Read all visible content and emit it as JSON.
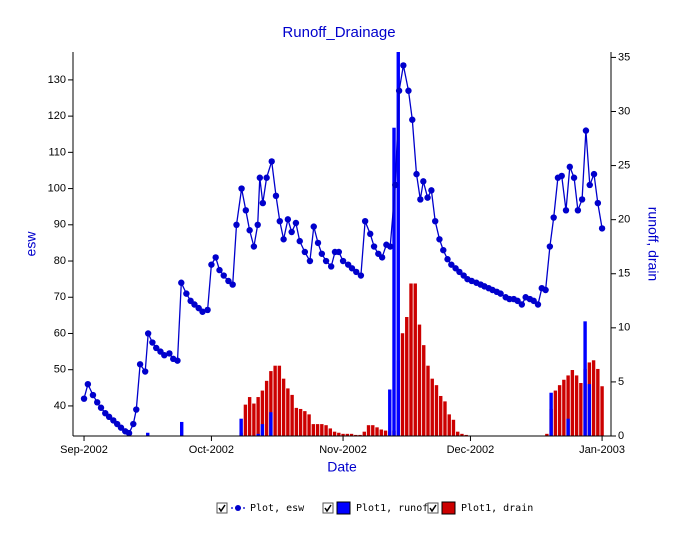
{
  "chart_data": {
    "type": "line",
    "title": "Runoff_Drainage",
    "x_label": "Date",
    "y_label": "esw",
    "y2_label": "runoff, drain",
    "xlim": [
      -2.6,
      124.1
    ],
    "xticks": [
      {
        "value": 0,
        "label": "Sep-2002"
      },
      {
        "value": 30,
        "label": "Oct-2002"
      },
      {
        "value": 61,
        "label": "Nov-2002"
      },
      {
        "value": 91,
        "label": "Dec-2002"
      },
      {
        "value": 122,
        "label": "Jan-2003"
      }
    ],
    "ylim": [
      31.7,
      137.7
    ],
    "yticks": [
      40,
      50,
      60,
      70,
      80,
      90,
      100,
      110,
      120,
      130
    ],
    "y2lim": [
      0,
      35.5
    ],
    "y2ticks": [
      0,
      5,
      10,
      15,
      20,
      25,
      30,
      35
    ],
    "series": [
      {
        "name": "Plot, esw",
        "type": "line",
        "color": "#0000cc",
        "x": [
          0,
          0.9,
          2.1,
          3.1,
          4,
          5,
          5.9,
          6.9,
          7.8,
          8.7,
          9.7,
          10.6,
          11.6,
          12.3,
          13.2,
          14.4,
          15.1,
          16.1,
          17,
          18,
          18.9,
          20.1,
          21,
          22,
          22.9,
          24.1,
          25.1,
          26,
          27,
          27.9,
          29.1,
          30,
          31,
          31.9,
          32.9,
          34,
          35,
          35.9,
          37.1,
          38.1,
          39,
          40,
          40.9,
          41.4,
          42.1,
          43,
          44.2,
          45.2,
          46.1,
          47,
          48,
          48.9,
          49.9,
          50.8,
          52,
          53.2,
          54.1,
          55.1,
          56,
          57,
          58.2,
          59.1,
          60,
          61,
          62.2,
          63.1,
          64.1,
          65.2,
          66.2,
          67.4,
          68.3,
          69.3,
          70.2,
          71.2,
          72.1,
          73.3,
          74.2,
          75.2,
          76.4,
          77.3,
          78.3,
          79.2,
          79.9,
          80.9,
          81.8,
          82.7,
          83.7,
          84.6,
          85.6,
          86.5,
          87.5,
          88.4,
          89.4,
          90.3,
          91.3,
          92.4,
          93.4,
          94.3,
          95.3,
          96.2,
          97.2,
          98.1,
          99.3,
          100.2,
          101.2,
          102.1,
          103.1,
          104,
          105,
          105.9,
          106.9,
          107.8,
          108.7,
          109.7,
          110.6,
          111.6,
          112.5,
          113.5,
          114.4,
          115.4,
          116.3,
          117.3,
          118.2,
          119.1,
          120.1,
          121,
          122
        ],
        "values": [
          42,
          46,
          43,
          41,
          39.5,
          38,
          37,
          36,
          35,
          34,
          33,
          32.5,
          35,
          39,
          51.5,
          49.5,
          60,
          57.5,
          56,
          55,
          54,
          54.5,
          53,
          52.5,
          74,
          71,
          69,
          68,
          67,
          66,
          66.5,
          79,
          81,
          77.5,
          76,
          74.5,
          73.5,
          90,
          100,
          94,
          88.5,
          84,
          90,
          103,
          96,
          103,
          107.5,
          98,
          91,
          86,
          91.5,
          88,
          90.5,
          85.5,
          82.5,
          80,
          89.5,
          85,
          82,
          80,
          78.5,
          82.5,
          82.5,
          80,
          79,
          78,
          77,
          76,
          91,
          87.5,
          84,
          82,
          81,
          84.5,
          84,
          101,
          127,
          134,
          127,
          119,
          104,
          97,
          102,
          97.5,
          99.5,
          91,
          86,
          83,
          80.5,
          79,
          78,
          77,
          76,
          75,
          74.5,
          74,
          73.5,
          73,
          72.5,
          72,
          71.5,
          71,
          70,
          69.5,
          69.5,
          69,
          68,
          70,
          69.5,
          69,
          68,
          72.5,
          72,
          84,
          92,
          103,
          103.5,
          94,
          106,
          103,
          94,
          97,
          116,
          101,
          104,
          96,
          89
        ]
      },
      {
        "name": "Plot1, runoff",
        "type": "bar",
        "axis": "y2",
        "color": "#0000ff",
        "x": [
          15,
          23,
          37,
          41,
          42,
          44,
          72,
          73,
          74,
          110,
          114,
          118,
          119
        ],
        "values": [
          0.3,
          1.3,
          1.6,
          0.2,
          1.1,
          2.2,
          4.3,
          28.5,
          36,
          4.0,
          1.6,
          10.6,
          4.8
        ]
      },
      {
        "name": "Plot1, drain",
        "type": "bar",
        "axis": "y2",
        "color": "#cc0000",
        "x": [
          37,
          38,
          39,
          40,
          41,
          42,
          43,
          44,
          45,
          46,
          47,
          48,
          49,
          50,
          51,
          52,
          53,
          54,
          55,
          56,
          57,
          58,
          59,
          60,
          61,
          62,
          63,
          64,
          65,
          66,
          67,
          68,
          69,
          70,
          71,
          72,
          73,
          74,
          75,
          76,
          77,
          78,
          79,
          80,
          81,
          82,
          83,
          84,
          85,
          86,
          87,
          88,
          89,
          90,
          109,
          110,
          111,
          112,
          113,
          114,
          115,
          116,
          117,
          118,
          119,
          120,
          121,
          122
        ],
        "values": [
          0.3,
          2.9,
          3.6,
          3.0,
          3.6,
          4.2,
          5.1,
          6.0,
          6.5,
          6.5,
          5.3,
          4.4,
          3.8,
          2.6,
          2.5,
          2.3,
          2.0,
          1.1,
          1.1,
          1.1,
          1.0,
          0.7,
          0.4,
          0.3,
          0.2,
          0.2,
          0.2,
          0.1,
          0.1,
          0.4,
          1.0,
          1.0,
          0.8,
          0.6,
          0.5,
          0.4,
          0.5,
          7.0,
          9.5,
          11.0,
          14.1,
          14.1,
          10.3,
          8.4,
          6.5,
          5.3,
          4.7,
          3.7,
          3.2,
          2.0,
          1.5,
          0.4,
          0.2,
          0.1,
          0.2,
          2.5,
          4.2,
          4.7,
          5.2,
          5.6,
          6.1,
          5.6,
          4.9,
          6.2,
          6.8,
          7.0,
          6.2,
          4.6
        ]
      }
    ]
  }
}
